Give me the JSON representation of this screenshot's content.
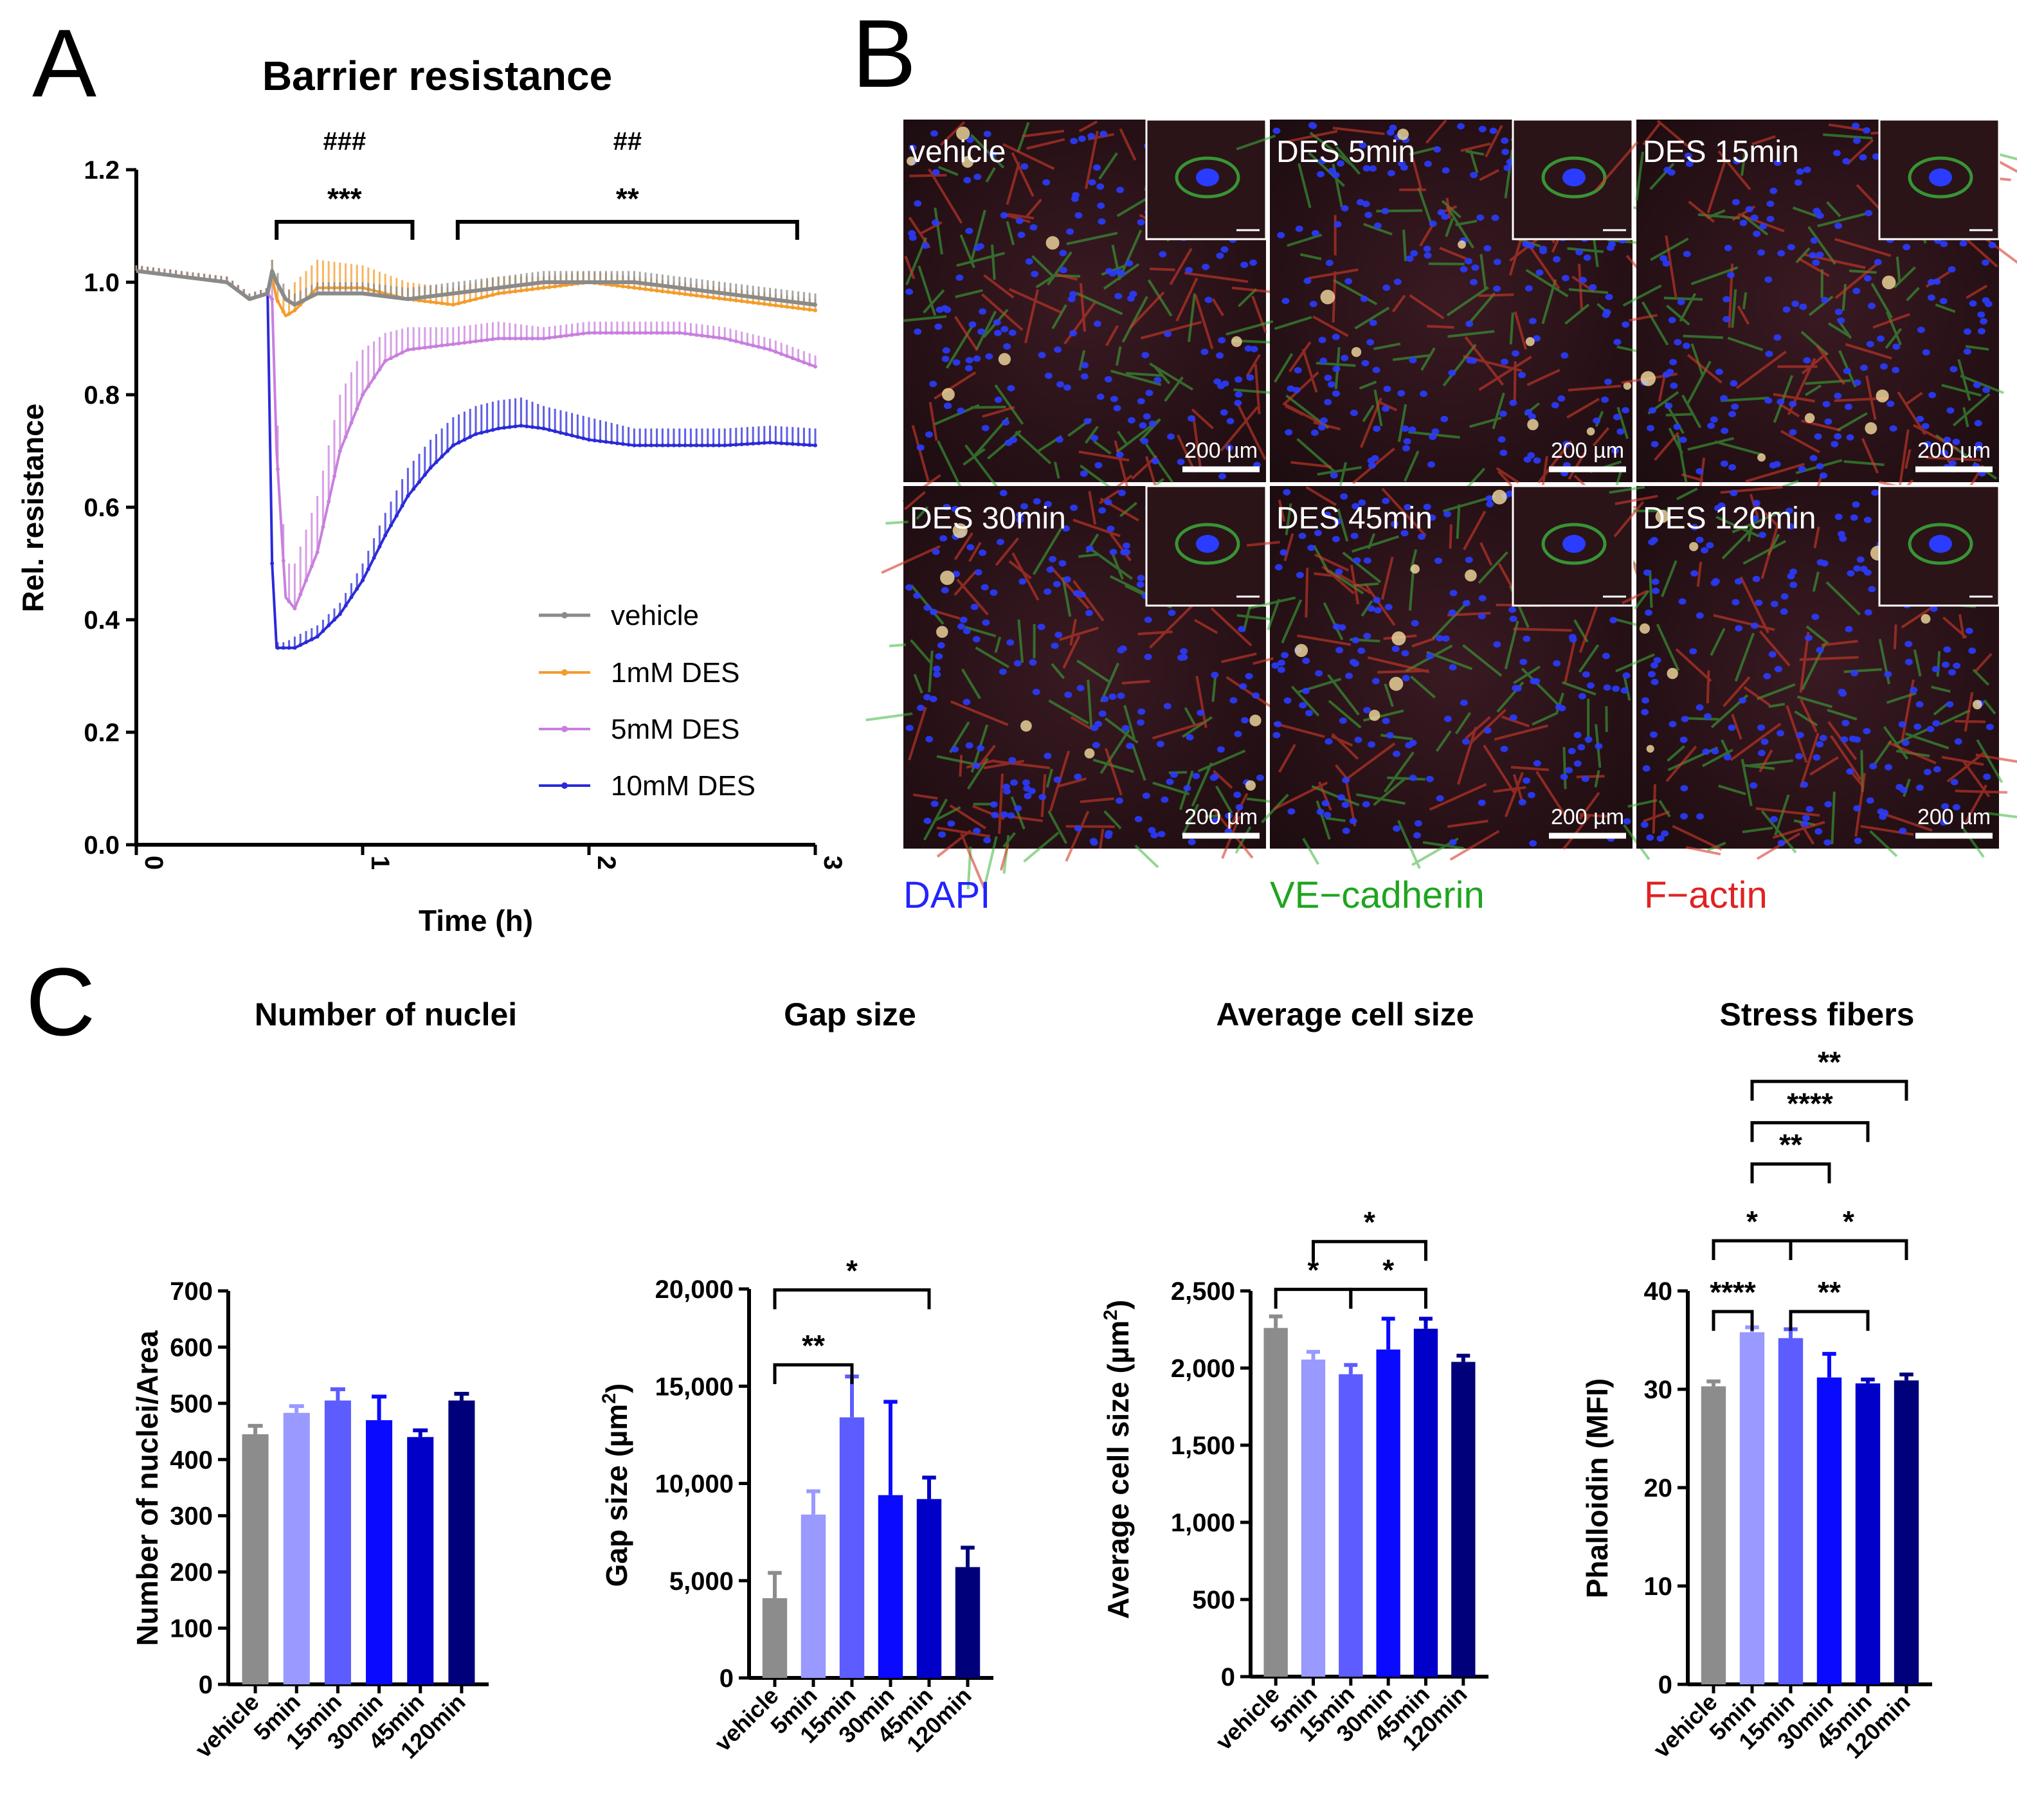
{
  "panels": {
    "a": {
      "letter": "A"
    },
    "b": {
      "letter": "B"
    },
    "c": {
      "letter": "C"
    }
  },
  "colors": {
    "vehicle": "#8a8a8a",
    "des1": "#f39c2c",
    "des5": "#c97fde",
    "des10": "#2a2ad8",
    "bars": [
      "#8c8c8c",
      "#9999ff",
      "#5c5cff",
      "#0a0aff",
      "#0000c8",
      "#00007a"
    ],
    "dapi": "#2323ff",
    "vecad": "#1fa51f",
    "factin": "#e02222"
  },
  "chart_data": [
    {
      "type": "line",
      "title": "Barrier resistance",
      "xlabel": "Time (h)",
      "ylabel": "Rel. resistance",
      "xlim": [
        0,
        3
      ],
      "ylim": [
        0,
        1.2
      ],
      "xticks": [
        "0",
        "1",
        "2",
        "3"
      ],
      "yticks": [
        "0.0",
        "0.2",
        "0.4",
        "0.6",
        "0.8",
        "1.0",
        "1.2"
      ],
      "legend_position": "bottom-right",
      "series": [
        {
          "name": "vehicle",
          "color_key": "vehicle",
          "x": [
            0,
            0.2,
            0.4,
            0.5,
            0.58,
            0.6,
            0.62,
            0.66,
            0.7,
            0.8,
            1.0,
            1.2,
            1.4,
            1.6,
            1.8,
            2.0,
            2.2,
            2.4,
            2.6,
            2.8,
            3.0
          ],
          "y": [
            1.02,
            1.01,
            1.0,
            0.97,
            0.98,
            1.02,
            1.0,
            0.97,
            0.96,
            0.98,
            0.98,
            0.97,
            0.98,
            0.99,
            1.0,
            1.0,
            1.0,
            0.99,
            0.98,
            0.97,
            0.96
          ],
          "err": [
            0.01,
            0.01,
            0.01,
            0.01,
            0.01,
            0.02,
            0.02,
            0.02,
            0.02,
            0.02,
            0.02,
            0.02,
            0.02,
            0.02,
            0.02,
            0.02,
            0.02,
            0.02,
            0.02,
            0.02,
            0.02
          ]
        },
        {
          "name": "1mM DES",
          "color_key": "des1",
          "x": [
            0,
            0.2,
            0.4,
            0.5,
            0.58,
            0.6,
            0.62,
            0.66,
            0.7,
            0.8,
            1.0,
            1.2,
            1.4,
            1.6,
            1.8,
            2.0,
            2.2,
            2.4,
            2.6,
            2.8,
            3.0
          ],
          "y": [
            1.02,
            1.01,
            1.0,
            0.97,
            0.98,
            1.01,
            0.97,
            0.94,
            0.95,
            0.99,
            0.99,
            0.97,
            0.96,
            0.98,
            0.99,
            1.0,
            0.99,
            0.98,
            0.97,
            0.96,
            0.95
          ],
          "err": [
            0.01,
            0.01,
            0.01,
            0.01,
            0.01,
            0.03,
            0.03,
            0.04,
            0.05,
            0.05,
            0.04,
            0.03,
            0.03,
            0.03,
            0.02,
            0.02,
            0.02,
            0.02,
            0.02,
            0.02,
            0.02
          ]
        },
        {
          "name": "5mM DES",
          "color_key": "des5",
          "x": [
            0,
            0.2,
            0.4,
            0.5,
            0.58,
            0.6,
            0.62,
            0.66,
            0.7,
            0.8,
            0.9,
            1.0,
            1.1,
            1.2,
            1.4,
            1.6,
            1.8,
            2.0,
            2.2,
            2.4,
            2.6,
            2.8,
            3.0
          ],
          "y": [
            1.02,
            1.01,
            1.0,
            0.97,
            0.98,
            0.97,
            0.7,
            0.44,
            0.42,
            0.52,
            0.7,
            0.8,
            0.86,
            0.88,
            0.89,
            0.9,
            0.9,
            0.91,
            0.91,
            0.91,
            0.9,
            0.88,
            0.85
          ],
          "err": [
            0.01,
            0.01,
            0.01,
            0.01,
            0.01,
            0.03,
            0.08,
            0.06,
            0.08,
            0.1,
            0.1,
            0.08,
            0.05,
            0.04,
            0.03,
            0.03,
            0.02,
            0.02,
            0.02,
            0.02,
            0.02,
            0.02,
            0.02
          ]
        },
        {
          "name": "10mM DES",
          "color_key": "des10",
          "x": [
            0,
            0.2,
            0.4,
            0.5,
            0.58,
            0.6,
            0.62,
            0.66,
            0.7,
            0.8,
            0.9,
            1.0,
            1.1,
            1.2,
            1.3,
            1.4,
            1.5,
            1.6,
            1.7,
            1.8,
            2.0,
            2.2,
            2.4,
            2.6,
            2.8,
            3.0
          ],
          "y": [
            1.02,
            1.01,
            1.0,
            0.97,
            0.98,
            0.5,
            0.35,
            0.35,
            0.35,
            0.37,
            0.41,
            0.47,
            0.55,
            0.62,
            0.67,
            0.71,
            0.73,
            0.74,
            0.745,
            0.74,
            0.72,
            0.71,
            0.71,
            0.71,
            0.715,
            0.71
          ],
          "err": [
            0.01,
            0.01,
            0.01,
            0.01,
            0.01,
            0.02,
            0.01,
            0.01,
            0.02,
            0.02,
            0.02,
            0.03,
            0.04,
            0.05,
            0.05,
            0.05,
            0.05,
            0.05,
            0.05,
            0.04,
            0.04,
            0.03,
            0.03,
            0.03,
            0.03,
            0.03
          ]
        }
      ],
      "significance": [
        {
          "x0": 0.62,
          "x1": 1.22,
          "stars": "***",
          "hash": "###"
        },
        {
          "x0": 1.42,
          "x1": 2.92,
          "stars": "**",
          "hash": "##"
        }
      ]
    },
    {
      "type": "bar",
      "title": "Number of nuclei",
      "ylabel": "Number of nuclei/Area",
      "categories": [
        "vehicle",
        "5min",
        "15min",
        "30min",
        "45min",
        "120min"
      ],
      "values": [
        445,
        483,
        505,
        470,
        440,
        505
      ],
      "errors": [
        15,
        12,
        20,
        42,
        12,
        12
      ],
      "ylim": [
        0,
        700
      ],
      "yticks": [
        "0",
        "100",
        "200",
        "300",
        "400",
        "500",
        "600",
        "700"
      ],
      "significance": []
    },
    {
      "type": "bar",
      "title": "Gap size",
      "ylabel": "Gap size (µm",
      "ylabel_sup": "2",
      "ylabel_close": ")",
      "categories": [
        "vehicle",
        "5min",
        "15min",
        "30min",
        "45min",
        "120min"
      ],
      "values": [
        4100,
        8400,
        13400,
        9400,
        9200,
        5700
      ],
      "errors": [
        1300,
        1200,
        2100,
        4800,
        1100,
        1000
      ],
      "ylim": [
        0,
        20000
      ],
      "yticks": [
        "0",
        "5,000",
        "10,000",
        "15,000",
        "20,000"
      ],
      "significance": [
        {
          "from": 0,
          "to": 2,
          "label": "**",
          "level": 16100
        },
        {
          "from": 0,
          "to": 4,
          "label": "*",
          "level": 19950
        }
      ]
    },
    {
      "type": "bar",
      "title": "Average cell size",
      "ylabel": "Average cell size  (µm",
      "ylabel_sup": "2",
      "ylabel_close": ")",
      "categories": [
        "vehicle",
        "5min",
        "15min",
        "30min",
        "45min",
        "120min"
      ],
      "values": [
        2260,
        2055,
        1960,
        2120,
        2255,
        2040
      ],
      "errors": [
        75,
        50,
        60,
        200,
        65,
        40
      ],
      "ylim": [
        0,
        2500
      ],
      "yticks": [
        "0",
        "500",
        "1,000",
        "1,500",
        "2,000",
        "2,500"
      ],
      "significance": [
        {
          "from": 0,
          "to": 2,
          "label": "*",
          "level": 2510
        },
        {
          "from": 2,
          "to": 4,
          "label": "*",
          "level": 2510
        },
        {
          "from": 1,
          "to": 4,
          "label": "*",
          "level": 2820
        }
      ]
    },
    {
      "type": "bar",
      "title": "Stress fibers",
      "ylabel": "Phalloidin (MFI)",
      "categories": [
        "vehicle",
        "5min",
        "15min",
        "30min",
        "45min",
        "120min"
      ],
      "values": [
        30.3,
        35.8,
        35.2,
        31.2,
        30.6,
        30.9
      ],
      "errors": [
        0.5,
        0.5,
        0.9,
        2.4,
        0.4,
        0.6
      ],
      "ylim": [
        0,
        40
      ],
      "yticks": [
        "0",
        "10",
        "20",
        "30",
        "40"
      ],
      "significance": [
        {
          "from": 0,
          "to": 1,
          "label": "****",
          "level": 37.9
        },
        {
          "from": 2,
          "to": 4,
          "label": "**",
          "level": 37.9
        },
        {
          "from": 0,
          "to": 2,
          "label": "*",
          "level": 45.1
        },
        {
          "from": 2,
          "to": 5,
          "label": "*",
          "level": 45.1
        },
        {
          "from": 1,
          "to": 3,
          "label": "**",
          "level": 52.9
        },
        {
          "from": 1,
          "to": 4,
          "label": "****",
          "level": 57.1
        },
        {
          "from": 1,
          "to": 5,
          "label": "**",
          "level": 61.3
        }
      ]
    }
  ],
  "microscopy": {
    "tiles": [
      {
        "label": "vehicle"
      },
      {
        "label": "DES 5min"
      },
      {
        "label": "DES 15min"
      },
      {
        "label": "DES 30min"
      },
      {
        "label": "DES 45min"
      },
      {
        "label": "DES 120min"
      }
    ],
    "scale_bar": "200 µm",
    "stains": {
      "dapi": "DAPI",
      "vecad": "VE−cadherin",
      "factin": "F−actin"
    }
  }
}
